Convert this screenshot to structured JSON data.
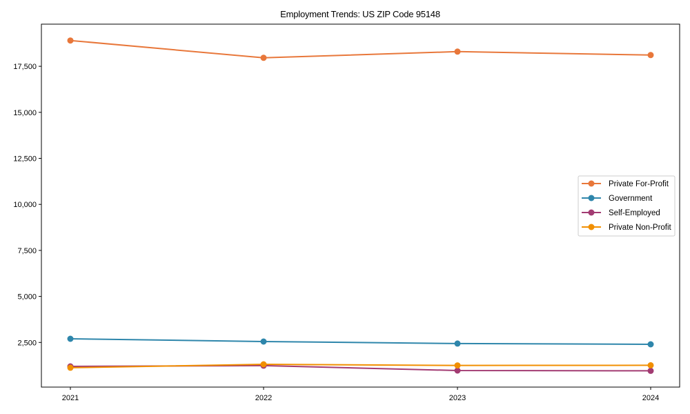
{
  "chart_data": {
    "type": "line",
    "title": "Employment Trends: US ZIP Code 95148",
    "xlabel": "",
    "ylabel": "",
    "x": [
      "2021",
      "2022",
      "2023",
      "2024"
    ],
    "series": [
      {
        "name": "Private For-Profit",
        "color": "#E8773A",
        "values": [
          18900,
          17960,
          18300,
          18110
        ]
      },
      {
        "name": "Government",
        "color": "#2E86AB",
        "values": [
          2700,
          2550,
          2440,
          2400
        ]
      },
      {
        "name": "Self-Employed",
        "color": "#A23B72",
        "values": [
          1200,
          1240,
          975,
          960
        ]
      },
      {
        "name": "Private Non-Profit",
        "color": "#F18F01",
        "values": [
          1130,
          1310,
          1250,
          1260
        ]
      }
    ],
    "yticks": [
      2500,
      5000,
      7500,
      10000,
      12500,
      15000,
      17500
    ],
    "ytick_labels": [
      "2,500",
      "5,000",
      "7,500",
      "10,000",
      "12,500",
      "15,000",
      "17,500"
    ],
    "ylim": [
      0,
      19730
    ],
    "grid": false,
    "legend_position": "center right"
  }
}
